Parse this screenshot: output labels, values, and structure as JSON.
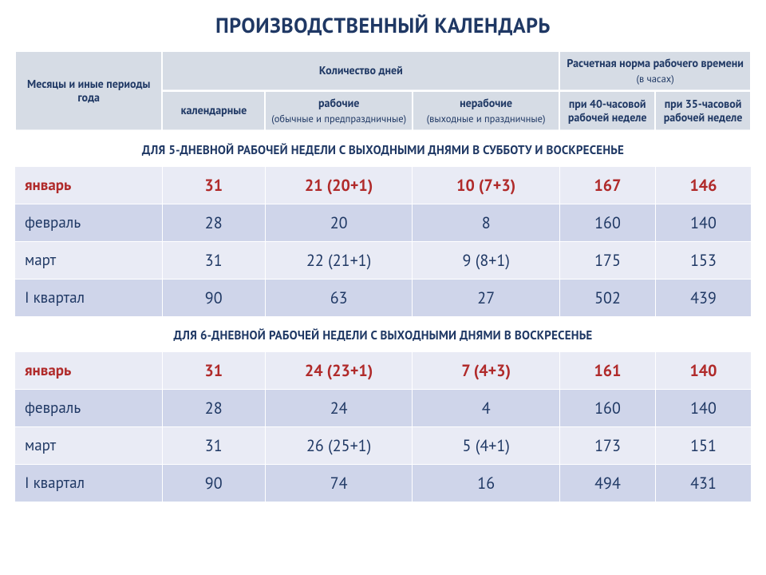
{
  "title": "ПРОИЗВОДСТВЕННЫЙ КАЛЕНДАРЬ",
  "header": {
    "periods": "Месяцы и иные периоды года",
    "days_group": "Количество дней",
    "hours_group_l1": "Расчетная норма рабочего времени",
    "hours_group_l2": "(в часах)",
    "calendar": "календарные",
    "work_l1": "рабочие",
    "work_l2": "(обычные и предпраздничные)",
    "nonwork_l1": "нерабочие",
    "nonwork_l2": "(выходные и праздничные)",
    "h40": "при 40-часовой рабочей неделе",
    "h35": "при 35-часовой рабочей неделе"
  },
  "section5_title": "ДЛЯ 5-ДНЕВНОЙ РАБОЧЕЙ НЕДЕЛИ С ВЫХОДНЫМИ ДНЯМИ В СУББОТУ И ВОСКРЕСЕНЬЕ",
  "section6_title": "ДЛЯ 6-ДНЕВНОЙ РАБОЧЕЙ НЕДЕЛИ С ВЫХОДНЫМИ ДНЯМИ В ВОСКРЕСЕНЬЕ",
  "t5": {
    "r0": {
      "label": "январь",
      "cal": "31",
      "work": "21 (20+1)",
      "non": "10 (7+3)",
      "h40": "167",
      "h35": "146"
    },
    "r1": {
      "label": "февраль",
      "cal": "28",
      "work": "20",
      "non": "8",
      "h40": "160",
      "h35": "140"
    },
    "r2": {
      "label": "март",
      "cal": "31",
      "work": "22 (21+1)",
      "non": "9 (8+1)",
      "h40": "175",
      "h35": "153"
    },
    "r3": {
      "label": "I квартал",
      "cal": "90",
      "work": "63",
      "non": "27",
      "h40": "502",
      "h35": "439"
    }
  },
  "t6": {
    "r0": {
      "label": "январь",
      "cal": "31",
      "work": "24 (23+1)",
      "non": "7 (4+3)",
      "h40": "161",
      "h35": "140"
    },
    "r1": {
      "label": "февраль",
      "cal": "28",
      "work": "24",
      "non": "4",
      "h40": "160",
      "h35": "140"
    },
    "r2": {
      "label": "март",
      "cal": "31",
      "work": "26 (25+1)",
      "non": "5 (4+1)",
      "h40": "173",
      "h35": "151"
    },
    "r3": {
      "label": "I квартал",
      "cal": "90",
      "work": "74",
      "non": "16",
      "h40": "494",
      "h35": "431"
    }
  }
}
